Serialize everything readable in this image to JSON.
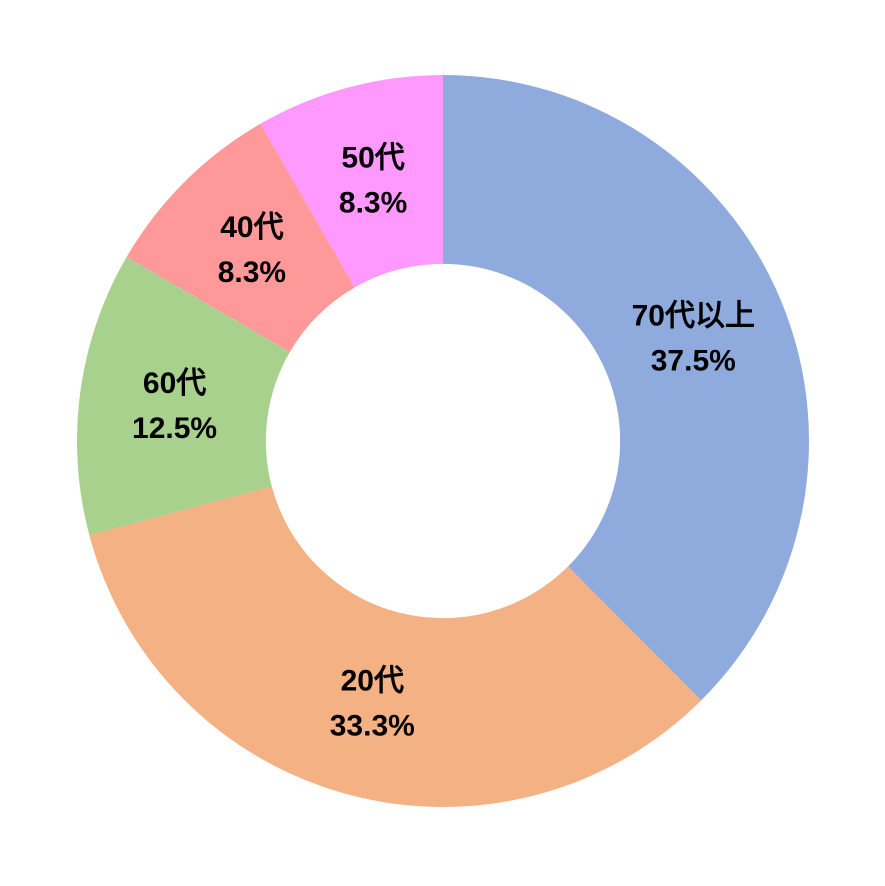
{
  "chart_data": {
    "type": "pie",
    "subtype": "donut",
    "title": "",
    "categories": [
      "70代以上",
      "20代",
      "60代",
      "40代",
      "50代"
    ],
    "values": [
      37.5,
      33.3,
      12.5,
      8.3,
      8.3
    ],
    "percent_labels": [
      "37.5%",
      "33.3%",
      "12.5%",
      "8.3%",
      "8.3%"
    ],
    "colors": [
      "#8FAADC",
      "#F4B183",
      "#A9D18E",
      "#FF9999",
      "#FF99FF"
    ],
    "label_color": "#000000",
    "background": "#FFFFFF",
    "start_angle_deg": 0,
    "direction": "clockwise",
    "inner_radius_ratio": 0.484,
    "label_radius_ratio": 0.74,
    "legend": "none",
    "grid": "off"
  }
}
